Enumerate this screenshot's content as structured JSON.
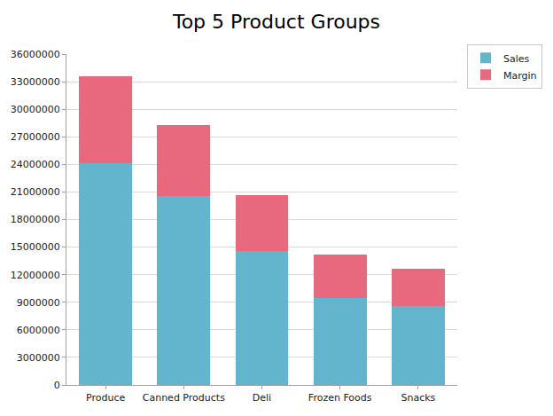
{
  "chart_data": {
    "type": "bar",
    "title": "Top 5 Product Groups",
    "stacked": true,
    "categories": [
      "Produce",
      "Canned Products",
      "Deli",
      "Frozen Foods",
      "Snacks"
    ],
    "series": [
      {
        "name": "Sales",
        "color": "#62b5cc",
        "values": [
          24100000,
          20600000,
          14600000,
          9500000,
          8600000
        ]
      },
      {
        "name": "Margin",
        "color": "#e8697d",
        "values": [
          9500000,
          7700000,
          6100000,
          4700000,
          4000000
        ]
      }
    ],
    "ylim": [
      0,
      36000000
    ],
    "yticks": [
      0,
      3000000,
      6000000,
      9000000,
      12000000,
      15000000,
      18000000,
      21000000,
      24000000,
      27000000,
      30000000,
      33000000,
      36000000
    ],
    "grid": true,
    "legend": "top right"
  }
}
